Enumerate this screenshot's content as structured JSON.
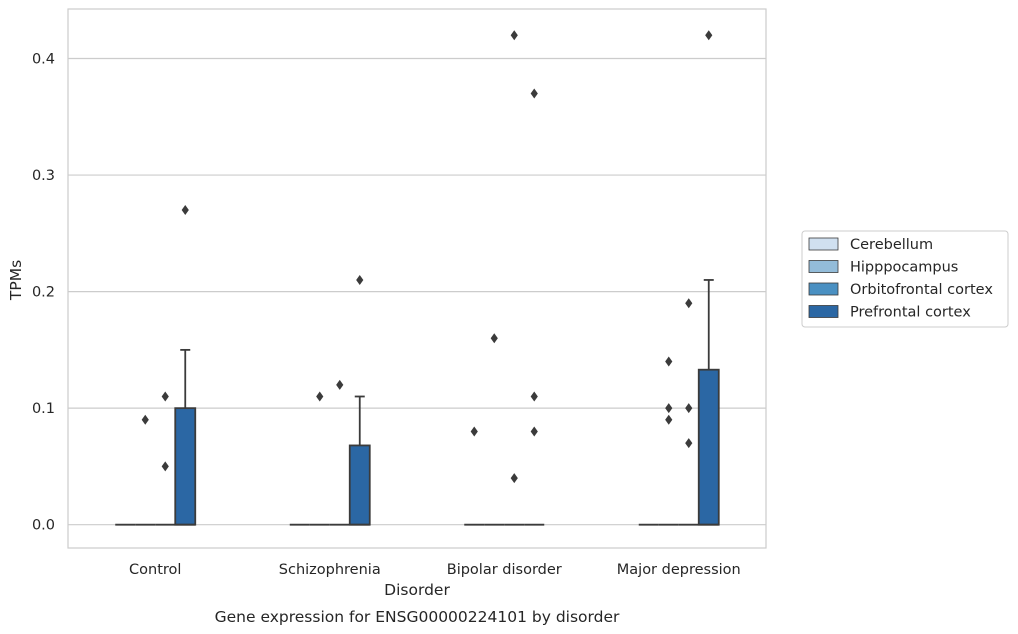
{
  "chart_data": {
    "type": "box",
    "categories": [
      "Control",
      "Schizophrenia",
      "Bipolar disorder",
      "Major depression"
    ],
    "xlabel": "Disorder",
    "ylabel": "TPMs",
    "caption": "Gene expression for ENSG00000224101 by disorder",
    "ylim": [
      -0.02,
      0.4425
    ],
    "yticks": [
      0.0,
      0.1,
      0.2,
      0.3,
      0.4
    ],
    "ytick_labels": [
      "0.0",
      "0.1",
      "0.2",
      "0.3",
      "0.4"
    ],
    "grid": "horizontal",
    "legend_position": "right",
    "series": [
      {
        "name": "Cerebellum",
        "color": "#d0e0f0",
        "boxes": [
          {
            "q1": 0,
            "median": 0,
            "q3": 0,
            "whisker_low": 0,
            "whisker_high": 0,
            "outliers": []
          },
          {
            "q1": 0,
            "median": 0,
            "q3": 0,
            "whisker_low": 0,
            "whisker_high": 0,
            "outliers": []
          },
          {
            "q1": 0,
            "median": 0,
            "q3": 0,
            "whisker_low": 0,
            "whisker_high": 0,
            "outliers": [
              0.08
            ]
          },
          {
            "q1": 0,
            "median": 0,
            "q3": 0,
            "whisker_low": 0,
            "whisker_high": 0,
            "outliers": []
          }
        ]
      },
      {
        "name": "Hipppocampus",
        "color": "#93bcd9",
        "boxes": [
          {
            "q1": 0,
            "median": 0,
            "q3": 0,
            "whisker_low": 0,
            "whisker_high": 0,
            "outliers": [
              0.09
            ]
          },
          {
            "q1": 0,
            "median": 0,
            "q3": 0,
            "whisker_low": 0,
            "whisker_high": 0,
            "outliers": [
              0.11
            ]
          },
          {
            "q1": 0,
            "median": 0,
            "q3": 0,
            "whisker_low": 0,
            "whisker_high": 0,
            "outliers": [
              0.16
            ]
          },
          {
            "q1": 0,
            "median": 0,
            "q3": 0,
            "whisker_low": 0,
            "whisker_high": 0,
            "outliers": [
              0.14,
              0.1,
              0.09
            ]
          }
        ]
      },
      {
        "name": "Orbitofrontal cortex",
        "color": "#4a90c2",
        "boxes": [
          {
            "q1": 0,
            "median": 0,
            "q3": 0,
            "whisker_low": 0,
            "whisker_high": 0,
            "outliers": [
              0.11,
              0.05
            ]
          },
          {
            "q1": 0,
            "median": 0,
            "q3": 0,
            "whisker_low": 0,
            "whisker_high": 0,
            "outliers": [
              0.12
            ]
          },
          {
            "q1": 0,
            "median": 0,
            "q3": 0,
            "whisker_low": 0,
            "whisker_high": 0,
            "outliers": [
              0.42,
              0.04
            ]
          },
          {
            "q1": 0,
            "median": 0,
            "q3": 0,
            "whisker_low": 0,
            "whisker_high": 0,
            "outliers": [
              0.19,
              0.1,
              0.07
            ]
          }
        ]
      },
      {
        "name": "Prefrontal cortex",
        "color": "#2b67a4",
        "boxes": [
          {
            "q1": 0,
            "median": 0,
            "q3": 0.1,
            "whisker_low": 0,
            "whisker_high": 0.15,
            "outliers": [
              0.27
            ]
          },
          {
            "q1": 0,
            "median": 0,
            "q3": 0.068,
            "whisker_low": 0,
            "whisker_high": 0.11,
            "outliers": [
              0.21
            ]
          },
          {
            "q1": 0,
            "median": 0,
            "q3": 0,
            "whisker_low": 0,
            "whisker_high": 0,
            "outliers": [
              0.37,
              0.11,
              0.08
            ]
          },
          {
            "q1": 0,
            "median": 0,
            "q3": 0.133,
            "whisker_low": 0,
            "whisker_high": 0.21,
            "outliers": [
              0.42
            ]
          }
        ]
      }
    ]
  }
}
